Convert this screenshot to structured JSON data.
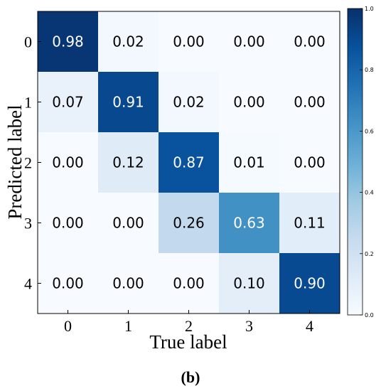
{
  "chart_data": {
    "type": "heatmap",
    "xlabel": "True label",
    "ylabel": "Predicted label",
    "x_categories": [
      "0",
      "1",
      "2",
      "3",
      "4"
    ],
    "y_categories": [
      "0",
      "1",
      "2",
      "3",
      "4"
    ],
    "values": [
      [
        0.98,
        0.02,
        0.0,
        0.0,
        0.0
      ],
      [
        0.07,
        0.91,
        0.02,
        0.0,
        0.0
      ],
      [
        0.0,
        0.12,
        0.87,
        0.01,
        0.0
      ],
      [
        0.0,
        0.0,
        0.26,
        0.63,
        0.11
      ],
      [
        0.0,
        0.0,
        0.0,
        0.1,
        0.9
      ]
    ],
    "value_labels": [
      [
        "0.98",
        "0.02",
        "0.00",
        "0.00",
        "0.00"
      ],
      [
        "0.07",
        "0.91",
        "0.02",
        "0.00",
        "0.00"
      ],
      [
        "0.00",
        "0.12",
        "0.87",
        "0.01",
        "0.00"
      ],
      [
        "0.00",
        "0.00",
        "0.26",
        "0.63",
        "0.11"
      ],
      [
        "0.00",
        "0.00",
        "0.00",
        "0.10",
        "0.90"
      ]
    ],
    "colorbar": {
      "range": [
        0.0,
        1.0
      ],
      "ticks": [
        "0.0",
        "0.2",
        "0.4",
        "0.6",
        "0.8",
        "1.0"
      ],
      "colormap": "Blues"
    }
  },
  "caption": "(b)"
}
